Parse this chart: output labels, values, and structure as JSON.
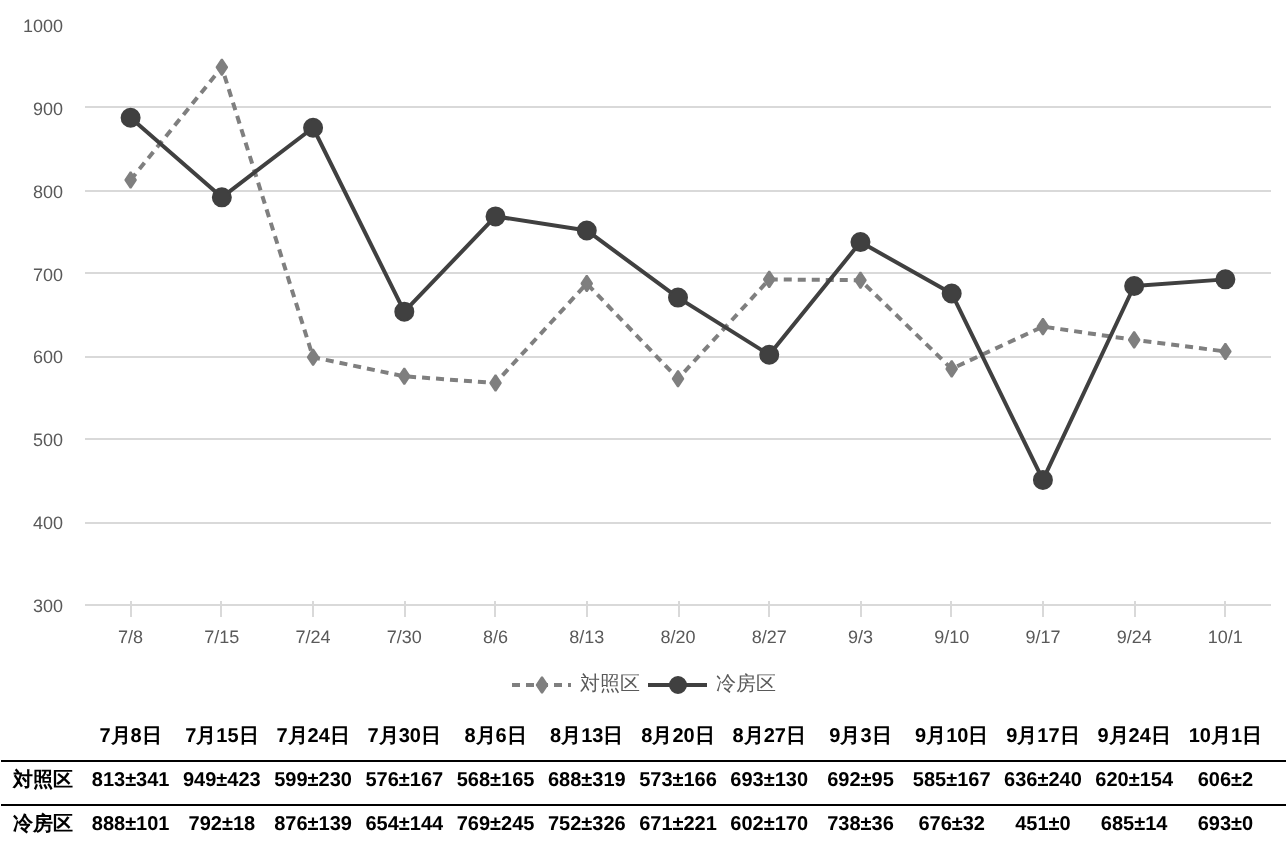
{
  "chart_data": {
    "type": "line",
    "categories": [
      "7/8",
      "7/15",
      "7/24",
      "7/30",
      "8/6",
      "8/13",
      "8/20",
      "8/27",
      "9/3",
      "9/10",
      "9/17",
      "9/24",
      "10/1"
    ],
    "series": [
      {
        "name": "対照区",
        "color": "#7f7f7f",
        "line_style": "dashed",
        "marker": "diamond",
        "values": [
          813,
          949,
          599,
          576,
          568,
          688,
          573,
          693,
          692,
          585,
          636,
          620,
          606
        ],
        "value_labels": [
          "813±341",
          "949±423",
          "599±230",
          "576±167",
          "568±165",
          "688±319",
          "573±166",
          "693±130",
          "692±95",
          "585±167",
          "636±240",
          "620±154",
          "606±2"
        ]
      },
      {
        "name": "冷房区",
        "color": "#404040",
        "line_style": "solid",
        "marker": "circle",
        "values": [
          888,
          792,
          876,
          654,
          769,
          752,
          671,
          602,
          738,
          676,
          451,
          685,
          693
        ],
        "value_labels": [
          "888±101",
          "792±18",
          "876±139",
          "654±144",
          "769±245",
          "752±326",
          "671±221",
          "602±170",
          "738±36",
          "676±32",
          "451±0",
          "685±14",
          "693±0"
        ]
      }
    ],
    "ylim": [
      300,
      1000
    ],
    "yticks": [
      300,
      400,
      500,
      600,
      700,
      800,
      900,
      1000
    ],
    "grid": "y",
    "legend": "bottom",
    "annotations": [
      "7月8日",
      "7月15日",
      "7月24日",
      "7月30日",
      "8月6日",
      "8月13日",
      "8月20日",
      "8月27日",
      "9月3日",
      "9月10日",
      "9月17日",
      "9月24日",
      "10月1日"
    ]
  }
}
